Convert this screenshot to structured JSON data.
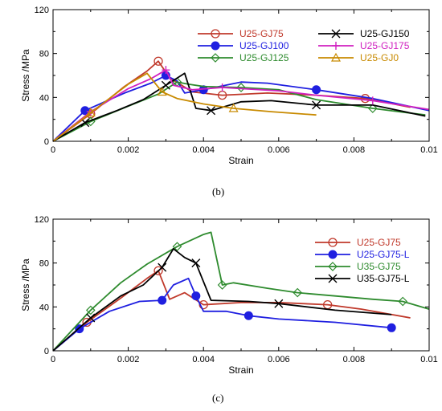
{
  "chart_data": [
    {
      "type": "line",
      "panel_label": "(b)",
      "xlabel": "Strain",
      "ylabel": "Stress /MPa",
      "xlim": [
        0,
        0.01
      ],
      "ylim": [
        0,
        120
      ],
      "xticks": [
        0,
        0.002,
        0.004,
        0.006,
        0.008,
        0.01
      ],
      "xtick_labels": [
        "0",
        "0.002",
        "0.004",
        "0.006",
        "0.008",
        "0.01"
      ],
      "yticks": [
        0,
        40,
        80,
        120
      ],
      "ytick_labels": [
        "0",
        "40",
        "80",
        "120"
      ],
      "grid": false,
      "legend_position": "top-center",
      "legend_columns": 2,
      "series": [
        {
          "name": "U25-GJ75",
          "color": "#c0392b",
          "marker": "open-circle",
          "x": [
            0,
            0.001,
            0.0019,
            0.0025,
            0.0028,
            0.0031,
            0.0037,
            0.0045,
            0.0057,
            0.007,
            0.0083,
            0.0095
          ],
          "y": [
            0,
            25,
            50,
            64,
            73,
            58,
            45,
            42,
            44,
            42,
            39,
            31
          ]
        },
        {
          "name": "U25-GJ100",
          "color": "#1f1fe0",
          "marker": "filled-circle",
          "x": [
            0,
            0.00085,
            0.0019,
            0.0026,
            0.003,
            0.0033,
            0.0035,
            0.004,
            0.005,
            0.0057,
            0.007,
            0.0085,
            0.01
          ],
          "y": [
            0,
            28,
            44,
            53,
            60,
            55,
            44,
            47,
            54,
            53,
            47,
            39,
            28
          ]
        },
        {
          "name": "U25-GJ125",
          "color": "#2e8b2e",
          "marker": "open-diamond",
          "x": [
            0,
            0.001,
            0.002,
            0.0028,
            0.0033,
            0.0036,
            0.004,
            0.005,
            0.006,
            0.007,
            0.0085,
            0.0099
          ],
          "y": [
            0,
            18,
            32,
            43,
            54,
            52,
            50,
            49,
            47,
            38,
            30,
            24
          ]
        },
        {
          "name": "U25-GJ150",
          "color": "#000000",
          "marker": "x",
          "x": [
            0,
            0.00085,
            0.0017,
            0.0024,
            0.003,
            0.0035,
            0.0038,
            0.0042,
            0.005,
            0.0058,
            0.007,
            0.0085,
            0.0099
          ],
          "y": [
            0,
            17,
            28,
            38,
            51,
            62,
            30,
            28,
            36,
            37,
            33,
            33,
            23
          ]
        },
        {
          "name": "U25-GJ175",
          "color": "#d020c0",
          "marker": "plus",
          "x": [
            0,
            0.001,
            0.002,
            0.0026,
            0.003,
            0.0032,
            0.0037,
            0.0045,
            0.006,
            0.007,
            0.0085,
            0.01
          ],
          "y": [
            0,
            27,
            48,
            57,
            65,
            51,
            47,
            49,
            46,
            42,
            37,
            29
          ]
        },
        {
          "name": "U25-GJ0",
          "color": "#c88a00",
          "marker": "open-triangle",
          "x": [
            0,
            0.001,
            0.002,
            0.0025,
            0.0029,
            0.0033,
            0.004,
            0.0048,
            0.0058,
            0.007
          ],
          "y": [
            0,
            26,
            52,
            62,
            45,
            39,
            34,
            30,
            27,
            24
          ]
        }
      ]
    },
    {
      "type": "line",
      "panel_label": "(c)",
      "xlabel": "Strain",
      "ylabel": "Stress /MPa",
      "xlim": [
        0,
        0.01
      ],
      "ylim": [
        0,
        120
      ],
      "xticks": [
        0,
        0.002,
        0.004,
        0.006,
        0.008,
        0.01
      ],
      "xtick_labels": [
        "0",
        "0.002",
        "0.004",
        "0.006",
        "0.008",
        "0.01"
      ],
      "yticks": [
        0,
        40,
        80,
        120
      ],
      "ytick_labels": [
        "0",
        "40",
        "80",
        "120"
      ],
      "grid": false,
      "legend_position": "right",
      "legend_columns": 1,
      "series": [
        {
          "name": "U25-GJ75",
          "color": "#c0392b",
          "marker": "open-circle",
          "x": [
            0,
            0.0009,
            0.0018,
            0.0025,
            0.0028,
            0.0031,
            0.0035,
            0.004,
            0.005,
            0.006,
            0.0073,
            0.0082,
            0.0095
          ],
          "y": [
            0,
            26,
            48,
            66,
            73,
            47,
            53,
            42,
            44,
            44,
            42,
            38,
            30
          ]
        },
        {
          "name": "U25-GJ75-L",
          "color": "#1f1fe0",
          "marker": "filled-circle",
          "x": [
            0,
            0.0007,
            0.0015,
            0.0023,
            0.0029,
            0.0032,
            0.0036,
            0.0038,
            0.004,
            0.0046,
            0.0052,
            0.006,
            0.0075,
            0.009
          ],
          "y": [
            0,
            20,
            36,
            45,
            46,
            60,
            66,
            50,
            36,
            36,
            32,
            29,
            26,
            21
          ]
        },
        {
          "name": "U35-GJ75",
          "color": "#2e8b2e",
          "marker": "open-diamond",
          "x": [
            0,
            0.001,
            0.0018,
            0.0025,
            0.0033,
            0.004,
            0.0042,
            0.0045,
            0.0048,
            0.0057,
            0.0065,
            0.0075,
            0.0085,
            0.0093,
            0.01
          ],
          "y": [
            0,
            37,
            62,
            79,
            95,
            106,
            108,
            60,
            62,
            57,
            53,
            50,
            47,
            45,
            38
          ]
        },
        {
          "name": "U35-GJ75-L",
          "color": "#000000",
          "marker": "x",
          "x": [
            0,
            0.001,
            0.0018,
            0.0024,
            0.0029,
            0.0032,
            0.0035,
            0.0038,
            0.0042,
            0.0052,
            0.006,
            0.0075,
            0.009
          ],
          "y": [
            0,
            30,
            50,
            60,
            76,
            93,
            85,
            80,
            46,
            45,
            43,
            37,
            33
          ]
        }
      ]
    }
  ]
}
